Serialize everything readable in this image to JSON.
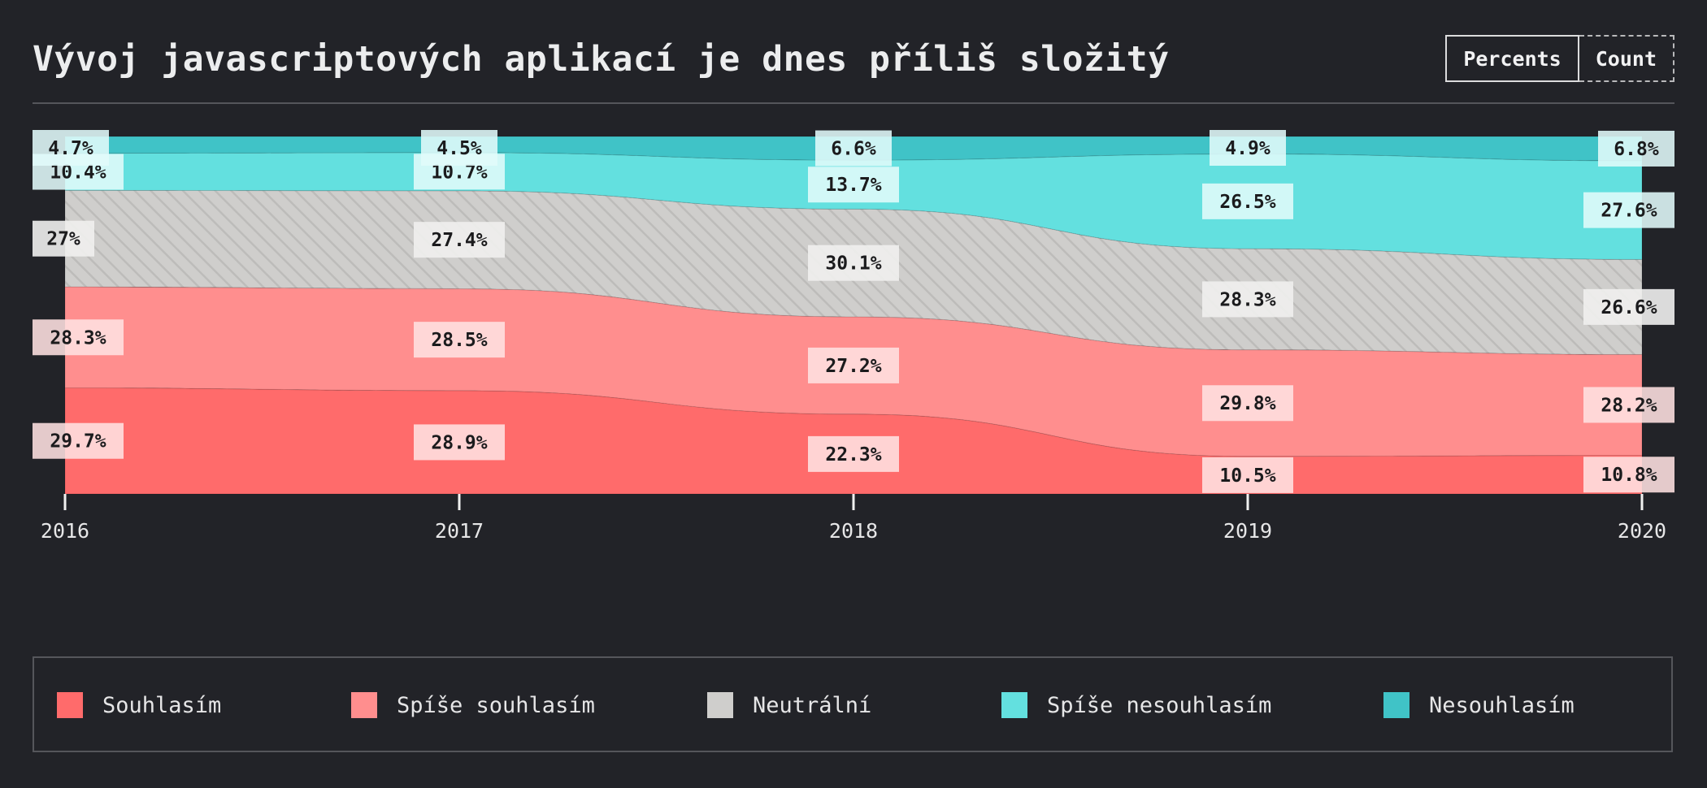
{
  "title": "Vývoj javascriptových aplikací je dnes příliš složitý",
  "toggle": {
    "percents_label": "Percents",
    "count_label": "Count",
    "active": "Percents"
  },
  "chart_data": {
    "type": "area",
    "stacking": "percent",
    "x": [
      "2016",
      "2017",
      "2018",
      "2019",
      "2020"
    ],
    "series": [
      {
        "name": "Souhlasím",
        "color": "#ff6b6b",
        "values": [
          29.7,
          28.9,
          22.3,
          10.5,
          10.8
        ],
        "labels": [
          "29.7%",
          "28.9%",
          "22.3%",
          "10.5%",
          "10.8%"
        ]
      },
      {
        "name": "Spíše souhlasím",
        "color": "#ff8e8e",
        "values": [
          28.3,
          28.5,
          27.2,
          29.8,
          28.2
        ],
        "labels": [
          "28.3%",
          "28.5%",
          "27.2%",
          "29.8%",
          "28.2%"
        ]
      },
      {
        "name": "Neutrální",
        "color": "#cfcecc",
        "pattern": "diagonal-hatch",
        "values": [
          27,
          27.4,
          30.1,
          28.3,
          26.6
        ],
        "labels": [
          "27%",
          "27.4%",
          "30.1%",
          "28.3%",
          "26.6%"
        ]
      },
      {
        "name": "Spíše nesouhlasím",
        "color": "#63e0df",
        "values": [
          10.4,
          10.7,
          13.7,
          26.5,
          27.6
        ],
        "labels": [
          "10.4%",
          "10.7%",
          "13.7%",
          "26.5%",
          "27.6%"
        ]
      },
      {
        "name": "Nesouhlasím",
        "color": "#40c3c7",
        "values": [
          4.7,
          4.5,
          6.6,
          4.9,
          6.8
        ],
        "labels": [
          "4.7%",
          "4.5%",
          "6.6%",
          "4.9%",
          "6.8%"
        ]
      }
    ],
    "ylim": [
      0,
      100
    ],
    "legend_position": "bottom",
    "grid": false
  },
  "legend": {
    "items": [
      {
        "label": "Souhlasím",
        "color": "#ff6b6b"
      },
      {
        "label": "Spíše souhlasím",
        "color": "#ff8e8e"
      },
      {
        "label": "Neutrální",
        "color": "#cfcecc"
      },
      {
        "label": "Spíše nesouhlasím",
        "color": "#63e0df"
      },
      {
        "label": "Nesouhlasím",
        "color": "#40c3c7"
      }
    ]
  }
}
